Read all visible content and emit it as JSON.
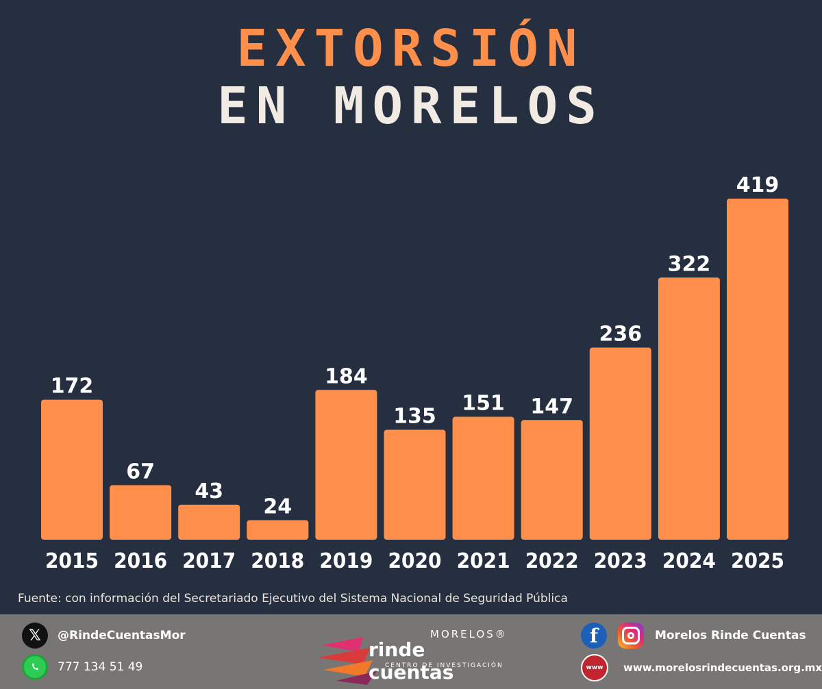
{
  "chart_data": {
    "type": "bar",
    "title": "EXTORSIÓN",
    "subtitle": "EN MORELOS",
    "xlabel": "",
    "ylabel": "",
    "categories": [
      "2015",
      "2016",
      "2017",
      "2018",
      "2019",
      "2020",
      "2021",
      "2022",
      "2023",
      "2024",
      "2025"
    ],
    "values": [
      172,
      67,
      43,
      24,
      184,
      135,
      151,
      147,
      236,
      322,
      419
    ],
    "value_labels": [
      "172",
      "67",
      "43",
      "24",
      "184",
      "135",
      "151",
      "147",
      "236",
      "322",
      "419"
    ],
    "ylim": [
      0,
      419
    ],
    "grid": false,
    "legend": "none",
    "bar_color": "#ff8f4a",
    "label_color": "#ffffff"
  },
  "source": "Fuente: con información del Secretariado Ejecutivo del Sistema Nacional de Seguridad Pública",
  "footer": {
    "x_handle": "@RindeCuentasMor",
    "x_icon": "x-logo-icon",
    "phone": "777 134 51 49",
    "phone_icon": "whatsapp-icon",
    "logo_top": "MORELOS®",
    "logo_main": "rinde cuentas",
    "logo_sub": "CENTRO DE INVESTIGACIÓN",
    "social_name": "Morelos Rinde Cuentas",
    "social_icons": [
      "facebook-icon",
      "instagram-icon"
    ],
    "website": "www.morelosrindecuentas.org.mx",
    "website_icon": "www-globe-icon",
    "www_badge": "www"
  },
  "colors": {
    "background": "#262f40",
    "accent": "#ff8f4a",
    "title_light": "#f1ebe3",
    "footer": "#787675"
  }
}
